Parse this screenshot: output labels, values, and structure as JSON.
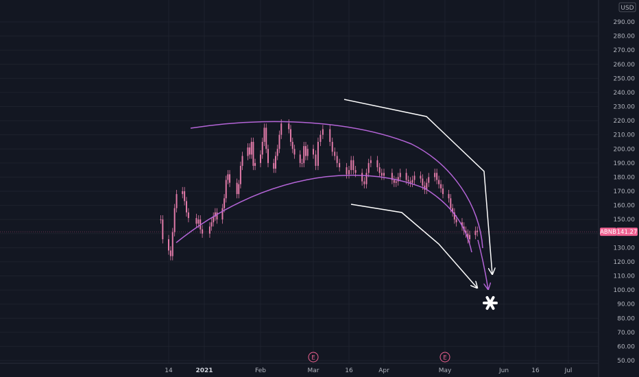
{
  "currency_label": "USD",
  "price_badge": {
    "ticker": "ABNB",
    "price": "141.27"
  },
  "event_markers": [
    {
      "label": "E",
      "x_label": "Mar"
    },
    {
      "label": "E",
      "x_label": "May"
    }
  ],
  "colors": {
    "background": "#131722",
    "grid": "#1e222d",
    "candles": "#e27ba9",
    "curves": "#b565d8",
    "annotations": "#ffffff",
    "badge": "#f06292"
  },
  "chart_data": {
    "type": "line",
    "title": "",
    "xlabel": "",
    "ylabel": "",
    "ylim": [
      47,
      298
    ],
    "y_ticks": [
      "290.00",
      "280.00",
      "270.00",
      "260.00",
      "250.00",
      "240.00",
      "230.00",
      "220.00",
      "210.00",
      "200.00",
      "190.00",
      "180.00",
      "170.00",
      "160.00",
      "150.00",
      "140.00",
      "130.00",
      "120.00",
      "110.00",
      "100.00",
      "90.00",
      "80.00",
      "70.00",
      "60.00",
      "50.00"
    ],
    "x_ticks": [
      "14",
      "2021",
      "Feb",
      "Mar",
      "16",
      "Apr",
      "May",
      "Jun",
      "16",
      "Jul"
    ],
    "x_tick_dates": [
      "2020-12-14",
      "2021-01-01",
      "2021-02-01",
      "2021-03-01",
      "2021-03-16",
      "2021-04-01",
      "2021-05-01",
      "2021-06-01",
      "2021-06-16",
      "2021-07-01"
    ],
    "last_price": 141.27,
    "series": [
      {
        "x": [
          "2020-12-10",
          "2020-12-11",
          "2020-12-14",
          "2020-12-15",
          "2020-12-16",
          "2020-12-17",
          "2020-12-18",
          "2020-12-21",
          "2020-12-22",
          "2020-12-23",
          "2020-12-24",
          "2020-12-28",
          "2020-12-29",
          "2020-12-30",
          "2020-12-31",
          "2021-01-04",
          "2021-01-05",
          "2021-01-06",
          "2021-01-07",
          "2021-01-08",
          "2021-01-11",
          "2021-01-12",
          "2021-01-13",
          "2021-01-14",
          "2021-01-15",
          "2021-01-19",
          "2021-01-20",
          "2021-01-21",
          "2021-01-22",
          "2021-01-25",
          "2021-01-26",
          "2021-01-27",
          "2021-01-28",
          "2021-01-29",
          "2021-02-01",
          "2021-02-02",
          "2021-02-03",
          "2021-02-04",
          "2021-02-05",
          "2021-02-08",
          "2021-02-09",
          "2021-02-10",
          "2021-02-11",
          "2021-02-12",
          "2021-02-16",
          "2021-02-17",
          "2021-02-18",
          "2021-02-19",
          "2021-02-22",
          "2021-02-23",
          "2021-02-24",
          "2021-02-25",
          "2021-02-26",
          "2021-03-01",
          "2021-03-02",
          "2021-03-03",
          "2021-03-04",
          "2021-03-05",
          "2021-03-08",
          "2021-03-09",
          "2021-03-10",
          "2021-03-11",
          "2021-03-12",
          "2021-03-15",
          "2021-03-16",
          "2021-03-17",
          "2021-03-18",
          "2021-03-19",
          "2021-03-22",
          "2021-03-23",
          "2021-03-24",
          "2021-03-25",
          "2021-03-26",
          "2021-03-29",
          "2021-03-30",
          "2021-03-31",
          "2021-04-01",
          "2021-04-05",
          "2021-04-06",
          "2021-04-07",
          "2021-04-08",
          "2021-04-09",
          "2021-04-12",
          "2021-04-13",
          "2021-04-14",
          "2021-04-15",
          "2021-04-16",
          "2021-04-19",
          "2021-04-20",
          "2021-04-21",
          "2021-04-22",
          "2021-04-23",
          "2021-04-26",
          "2021-04-27",
          "2021-04-28",
          "2021-04-29",
          "2021-04-30",
          "2021-05-03",
          "2021-05-04",
          "2021-05-05",
          "2021-05-06",
          "2021-05-07",
          "2021-05-10",
          "2021-05-11",
          "2021-05-12",
          "2021-05-13",
          "2021-05-14",
          "2021-05-17",
          "2021-05-18"
        ],
        "values": [
          150,
          136,
          128,
          124,
          141,
          158,
          168,
          170,
          163,
          155,
          151,
          147,
          150,
          143,
          140,
          145,
          148,
          152,
          155,
          150,
          158,
          165,
          178,
          182,
          176,
          168,
          175,
          188,
          195,
          201,
          196,
          205,
          188,
          190,
          196,
          205,
          215,
          200,
          190,
          186,
          195,
          200,
          210,
          218,
          214,
          205,
          200,
          196,
          190,
          190,
          202,
          195,
          200,
          196,
          188,
          205,
          210,
          214,
          205,
          198,
          195,
          190,
          187,
          182,
          185,
          192,
          185,
          183,
          177,
          175,
          183,
          190,
          192,
          187,
          183,
          181,
          183,
          178,
          176,
          177,
          180,
          183,
          178,
          177,
          176,
          178,
          181,
          179,
          174,
          171,
          176,
          180,
          183,
          178,
          175,
          172,
          168,
          165,
          158,
          155,
          150,
          148,
          145,
          142,
          140,
          136,
          139,
          142,
          141
        ]
      }
    ]
  }
}
